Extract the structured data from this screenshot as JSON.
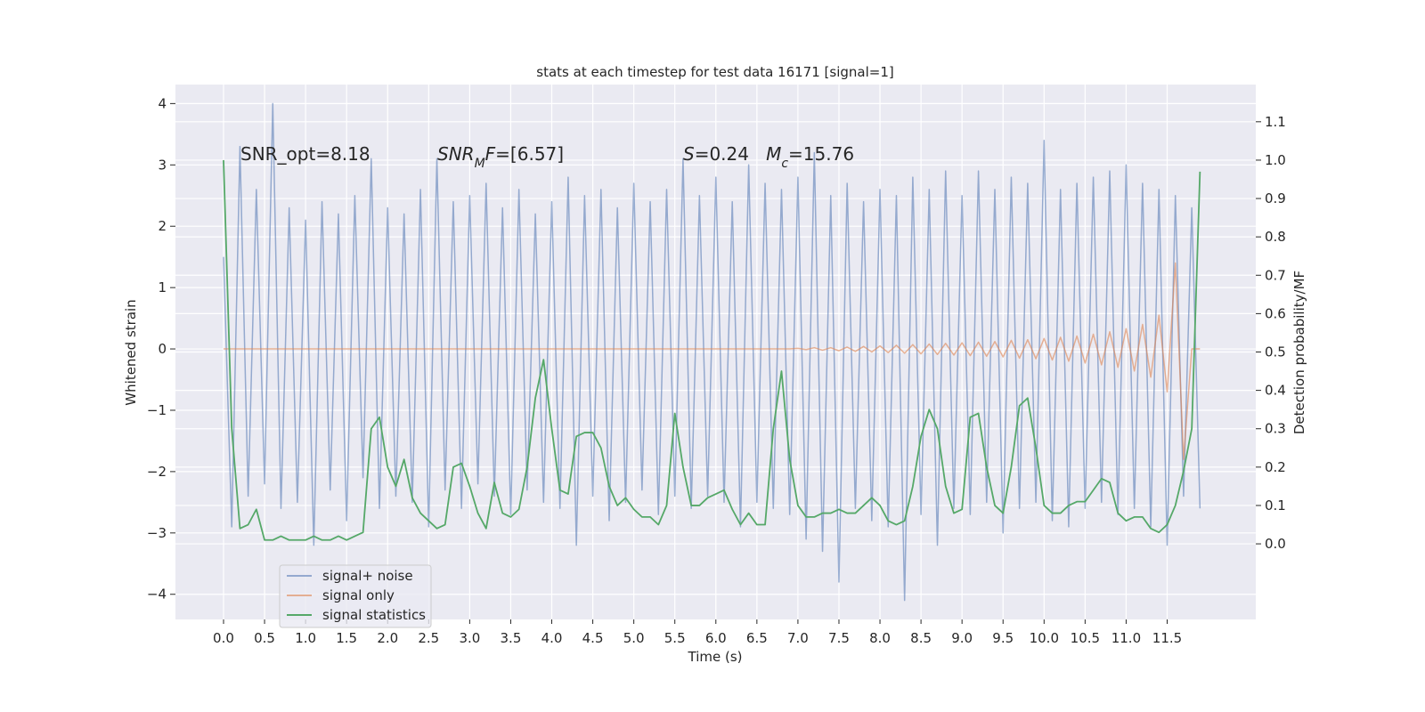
{
  "chart_data": {
    "type": "line",
    "title": "stats at each timestep for test data 16171 [signal=1]",
    "xlabel": "Time (s)",
    "ylabel": "Whitened strain",
    "y2label": "Detection probability/MF",
    "annotations": [
      {
        "segments": [
          {
            "text": "SNR_opt=8.18",
            "style": "normal"
          }
        ]
      },
      {
        "segments": [
          {
            "text": "SNR",
            "style": "italic"
          },
          {
            "text": "M",
            "style": "sub"
          },
          {
            "text": "F",
            "style": "italic"
          },
          {
            "text": "=[6.57]",
            "style": "normal"
          }
        ]
      },
      {
        "segments": [
          {
            "text": "S",
            "style": "italic"
          },
          {
            "text": "=0.24   ",
            "style": "normal"
          },
          {
            "text": "M",
            "style": "italic"
          },
          {
            "text": "c",
            "style": "sub"
          },
          {
            "text": "=15.76",
            "style": "normal"
          }
        ]
      }
    ],
    "x": [
      0.0,
      0.1,
      0.2,
      0.3,
      0.4,
      0.5,
      0.6,
      0.7,
      0.8,
      0.9,
      1.0,
      1.1,
      1.2,
      1.3,
      1.4,
      1.5,
      1.6,
      1.7,
      1.8,
      1.9,
      2.0,
      2.1,
      2.2,
      2.3,
      2.4,
      2.5,
      2.6,
      2.7,
      2.8,
      2.9,
      3.0,
      3.1,
      3.2,
      3.3,
      3.4,
      3.5,
      3.6,
      3.7,
      3.8,
      3.9,
      4.0,
      4.1,
      4.2,
      4.3,
      4.4,
      4.5,
      4.6,
      4.7,
      4.8,
      4.9,
      5.0,
      5.1,
      5.2,
      5.3,
      5.4,
      5.5,
      5.6,
      5.7,
      5.8,
      5.9,
      6.0,
      6.1,
      6.2,
      6.3,
      6.4,
      6.5,
      6.6,
      6.7,
      6.8,
      6.9,
      7.0,
      7.1,
      7.2,
      7.3,
      7.4,
      7.5,
      7.6,
      7.7,
      7.8,
      7.9,
      8.0,
      8.1,
      8.2,
      8.3,
      8.4,
      8.5,
      8.6,
      8.7,
      8.8,
      8.9,
      9.0,
      9.1,
      9.2,
      9.3,
      9.4,
      9.5,
      9.6,
      9.7,
      9.8,
      9.9,
      10.0,
      10.1,
      10.2,
      10.3,
      10.4,
      10.5,
      10.6,
      10.7,
      10.8,
      10.9,
      11.0,
      11.1,
      11.2,
      11.3,
      11.4,
      11.5,
      11.6,
      11.7,
      11.8,
      11.9
    ],
    "series": [
      {
        "name": "signal+ noise",
        "color": "#4c72b0",
        "alpha": 0.55,
        "axis": "y",
        "values": [
          1.5,
          -2.9,
          3.3,
          -2.4,
          2.6,
          -2.2,
          4.0,
          -2.6,
          2.3,
          -2.5,
          2.1,
          -3.2,
          2.4,
          -2.3,
          2.2,
          -2.8,
          2.5,
          -2.1,
          3.1,
          -2.6,
          2.3,
          -2.4,
          2.2,
          -2.5,
          2.6,
          -2.9,
          3.1,
          -2.3,
          2.4,
          -2.6,
          2.5,
          -2.2,
          2.7,
          -2.4,
          2.3,
          -2.7,
          2.6,
          -2.3,
          2.2,
          -2.5,
          2.4,
          -2.6,
          2.8,
          -3.2,
          2.5,
          -2.4,
          2.6,
          -2.8,
          2.3,
          -2.5,
          2.7,
          -2.3,
          2.4,
          -2.7,
          2.6,
          -2.4,
          3.1,
          -2.6,
          2.5,
          -2.4,
          2.8,
          -2.5,
          2.4,
          -2.9,
          3.0,
          -2.5,
          2.7,
          -2.6,
          2.6,
          -2.7,
          2.8,
          -3.1,
          3.2,
          -3.3,
          2.5,
          -3.8,
          2.7,
          -2.6,
          2.4,
          -2.8,
          2.6,
          -2.9,
          2.5,
          -4.1,
          2.8,
          -2.7,
          2.6,
          -3.2,
          2.9,
          -2.6,
          2.5,
          -2.7,
          2.9,
          -2.5,
          2.6,
          -3.0,
          2.8,
          -2.6,
          2.7,
          -2.5,
          3.4,
          -2.8,
          2.6,
          -2.9,
          2.7,
          -2.6,
          2.8,
          -2.5,
          2.9,
          -2.7,
          3.0,
          -2.6,
          2.7,
          -2.9,
          2.6,
          -3.2,
          2.5,
          -2.4,
          2.3,
          -2.6
        ]
      },
      {
        "name": "signal only",
        "color": "#dd8452",
        "alpha": 0.6,
        "axis": "y",
        "values": [
          0,
          0,
          0,
          0,
          0,
          0,
          0,
          0,
          0,
          0,
          0,
          0,
          0,
          0,
          0,
          0,
          0,
          0,
          0,
          0,
          0,
          0,
          0,
          0,
          0,
          0,
          0,
          0,
          0,
          0,
          0,
          0,
          0,
          0,
          0,
          0,
          0,
          0,
          0,
          0,
          0,
          0,
          0,
          0,
          0,
          0,
          0,
          0,
          0,
          0,
          0,
          0,
          0,
          0,
          0,
          0,
          0,
          0,
          0,
          0,
          0,
          0,
          0,
          0,
          0,
          0,
          0,
          0,
          0,
          0,
          0.01,
          -0.01,
          0.02,
          -0.02,
          0.02,
          -0.03,
          0.03,
          -0.04,
          0.04,
          -0.05,
          0.05,
          -0.06,
          0.06,
          -0.07,
          0.07,
          -0.08,
          0.08,
          -0.09,
          0.09,
          -0.1,
          0.1,
          -0.11,
          0.11,
          -0.12,
          0.12,
          -0.13,
          0.14,
          -0.15,
          0.15,
          -0.16,
          0.17,
          -0.18,
          0.19,
          -0.2,
          0.21,
          -0.23,
          0.24,
          -0.26,
          0.28,
          -0.3,
          0.33,
          -0.36,
          0.4,
          -0.46,
          0.55,
          -0.7,
          1.4,
          -1.8,
          0,
          0
        ]
      },
      {
        "name": "signal statistics",
        "color": "#55a868",
        "alpha": 1,
        "axis": "y2",
        "values": [
          1.0,
          0.3,
          0.04,
          0.05,
          0.09,
          0.01,
          0.01,
          0.02,
          0.01,
          0.01,
          0.01,
          0.02,
          0.01,
          0.01,
          0.02,
          0.01,
          0.02,
          0.03,
          0.3,
          0.33,
          0.2,
          0.15,
          0.22,
          0.12,
          0.08,
          0.06,
          0.04,
          0.05,
          0.2,
          0.21,
          0.15,
          0.08,
          0.04,
          0.16,
          0.08,
          0.07,
          0.09,
          0.2,
          0.38,
          0.48,
          0.3,
          0.14,
          0.13,
          0.28,
          0.29,
          0.29,
          0.25,
          0.15,
          0.1,
          0.12,
          0.09,
          0.07,
          0.07,
          0.05,
          0.1,
          0.34,
          0.2,
          0.1,
          0.1,
          0.12,
          0.13,
          0.14,
          0.09,
          0.05,
          0.08,
          0.05,
          0.05,
          0.3,
          0.45,
          0.22,
          0.1,
          0.07,
          0.07,
          0.08,
          0.08,
          0.09,
          0.08,
          0.08,
          0.1,
          0.12,
          0.1,
          0.06,
          0.05,
          0.06,
          0.15,
          0.28,
          0.35,
          0.3,
          0.15,
          0.08,
          0.09,
          0.33,
          0.34,
          0.2,
          0.1,
          0.08,
          0.2,
          0.36,
          0.38,
          0.25,
          0.1,
          0.08,
          0.08,
          0.1,
          0.11,
          0.11,
          0.14,
          0.17,
          0.16,
          0.08,
          0.06,
          0.07,
          0.07,
          0.04,
          0.03,
          0.05,
          0.1,
          0.19,
          0.3,
          0.97
        ]
      }
    ],
    "xlim": [
      -0.586,
      12.58
    ],
    "xticks": [
      {
        "value": 0,
        "label": "0.0"
      },
      0.5,
      {
        "value": 1,
        "label": "1.0"
      },
      1.5,
      {
        "value": 2,
        "label": "2.0"
      },
      2.5,
      {
        "value": 3,
        "label": "3.0"
      },
      3.5,
      {
        "value": 4,
        "label": "4.0"
      },
      4.5,
      {
        "value": 5,
        "label": "5.0"
      },
      5.5,
      {
        "value": 6,
        "label": "6.0"
      },
      6.5,
      {
        "value": 7,
        "label": "7.0"
      },
      7.5,
      {
        "value": 8,
        "label": "8.0"
      },
      8.5,
      {
        "value": 9,
        "label": "9.0"
      },
      9.5,
      {
        "value": 10,
        "label": "10.0"
      },
      10.5,
      {
        "value": 11,
        "label": "11.0"
      },
      11.5
    ],
    "ylim": [
      -4.41,
      4.31
    ],
    "yticks": [
      {
        "value": -4,
        "label": "−4"
      },
      {
        "value": -3,
        "label": "−3"
      },
      {
        "value": -2,
        "label": "−2"
      },
      {
        "value": -1,
        "label": "−1"
      },
      0,
      1,
      2,
      3,
      4
    ],
    "y2lim": [
      -0.197,
      1.197
    ],
    "y2ticks": [
      {
        "value": 0,
        "label": "0.0"
      },
      0.1,
      0.2,
      0.3,
      0.4,
      0.5,
      0.6,
      0.7,
      0.8,
      0.9,
      {
        "value": 1,
        "label": "1.0"
      },
      1.1
    ],
    "grid": true,
    "legend": "lower left"
  }
}
